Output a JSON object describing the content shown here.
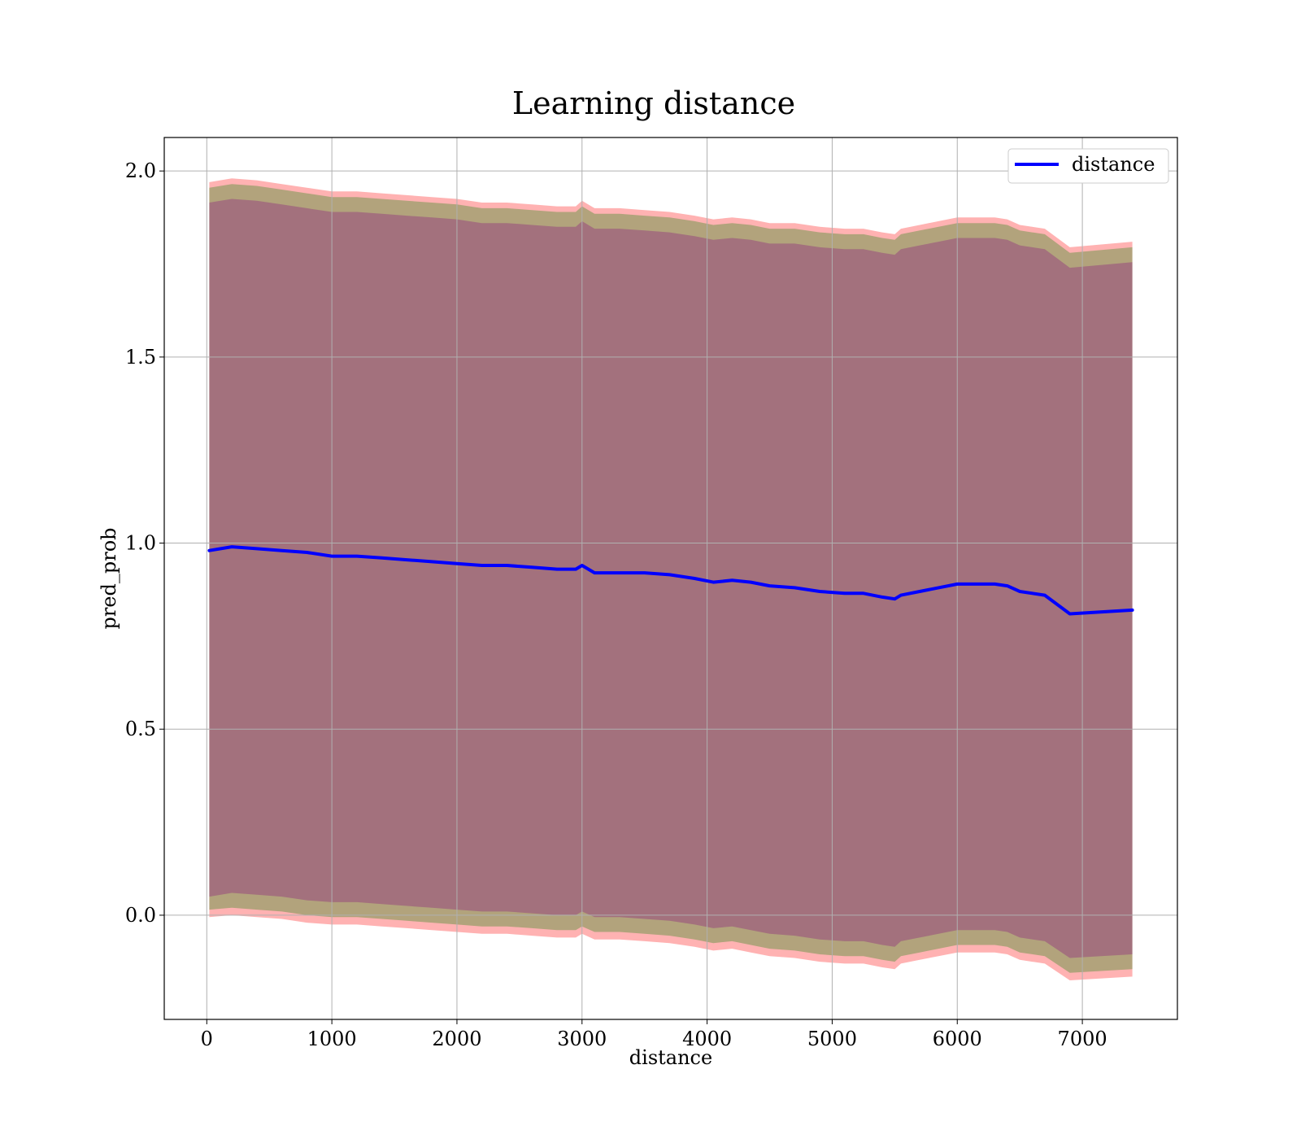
{
  "chart_data": {
    "type": "area",
    "title": "Learning distance",
    "xlabel": "distance",
    "ylabel": "pred_prob",
    "xlim": [
      -340,
      7760
    ],
    "ylim": [
      -0.28,
      2.09
    ],
    "grid": true,
    "legend_position": "top-right",
    "x_ticks": [
      0,
      1000,
      2000,
      3000,
      4000,
      5000,
      6000,
      7000
    ],
    "y_ticks": [
      0.0,
      0.5,
      1.0,
      1.5,
      2.0
    ],
    "x_tick_labels": [
      "0",
      "1000",
      "2000",
      "3000",
      "4000",
      "5000",
      "6000",
      "7000"
    ],
    "y_tick_labels": [
      "0.0",
      "0.5",
      "1.0",
      "1.5",
      "2.0"
    ],
    "x": [
      20,
      200,
      400,
      600,
      800,
      1000,
      1200,
      1400,
      1600,
      1800,
      2000,
      2200,
      2400,
      2600,
      2800,
      2950,
      3000,
      3100,
      3300,
      3500,
      3700,
      3900,
      4050,
      4200,
      4350,
      4500,
      4700,
      4900,
      5100,
      5250,
      5400,
      5500,
      5550,
      5700,
      5850,
      6000,
      6100,
      6300,
      6400,
      6500,
      6700,
      6900,
      7400
    ],
    "series": [
      {
        "name": "distance",
        "color": "#0000ff",
        "values": [
          0.98,
          0.99,
          0.985,
          0.98,
          0.975,
          0.965,
          0.965,
          0.96,
          0.955,
          0.95,
          0.945,
          0.94,
          0.94,
          0.935,
          0.93,
          0.93,
          0.94,
          0.92,
          0.92,
          0.92,
          0.915,
          0.905,
          0.895,
          0.9,
          0.895,
          0.885,
          0.88,
          0.87,
          0.865,
          0.865,
          0.855,
          0.85,
          0.86,
          0.87,
          0.88,
          0.89,
          0.89,
          0.89,
          0.885,
          0.87,
          0.86,
          0.81,
          0.82
        ]
      }
    ],
    "bands": [
      {
        "color": "#ff0000",
        "upper": [
          1.97,
          1.98,
          1.975,
          1.965,
          1.955,
          1.945,
          1.945,
          1.94,
          1.935,
          1.93,
          1.925,
          1.915,
          1.915,
          1.91,
          1.905,
          1.905,
          1.92,
          1.9,
          1.9,
          1.895,
          1.89,
          1.88,
          1.87,
          1.875,
          1.87,
          1.86,
          1.86,
          1.85,
          1.845,
          1.845,
          1.835,
          1.83,
          1.845,
          1.855,
          1.865,
          1.875,
          1.875,
          1.875,
          1.87,
          1.855,
          1.845,
          1.795,
          1.81
        ],
        "lower": [
          -0.005,
          0.0,
          -0.005,
          -0.01,
          -0.02,
          -0.025,
          -0.025,
          -0.03,
          -0.035,
          -0.04,
          -0.045,
          -0.05,
          -0.05,
          -0.055,
          -0.06,
          -0.06,
          -0.05,
          -0.065,
          -0.065,
          -0.07,
          -0.075,
          -0.085,
          -0.095,
          -0.09,
          -0.1,
          -0.11,
          -0.115,
          -0.125,
          -0.13,
          -0.13,
          -0.14,
          -0.145,
          -0.13,
          -0.12,
          -0.11,
          -0.1,
          -0.1,
          -0.1,
          -0.105,
          -0.12,
          -0.13,
          -0.175,
          -0.165
        ]
      },
      {
        "color": "#008000",
        "upper": [
          1.955,
          1.965,
          1.96,
          1.95,
          1.94,
          1.93,
          1.93,
          1.925,
          1.92,
          1.915,
          1.91,
          1.9,
          1.9,
          1.895,
          1.89,
          1.89,
          1.905,
          1.885,
          1.885,
          1.88,
          1.875,
          1.865,
          1.855,
          1.86,
          1.855,
          1.845,
          1.845,
          1.835,
          1.83,
          1.83,
          1.82,
          1.815,
          1.83,
          1.84,
          1.85,
          1.86,
          1.86,
          1.86,
          1.855,
          1.84,
          1.83,
          1.78,
          1.795
        ],
        "lower": [
          0.015,
          0.02,
          0.015,
          0.01,
          0.0,
          -0.005,
          -0.005,
          -0.01,
          -0.015,
          -0.02,
          -0.025,
          -0.03,
          -0.03,
          -0.035,
          -0.04,
          -0.04,
          -0.03,
          -0.045,
          -0.045,
          -0.05,
          -0.055,
          -0.065,
          -0.075,
          -0.07,
          -0.08,
          -0.09,
          -0.095,
          -0.105,
          -0.11,
          -0.11,
          -0.12,
          -0.125,
          -0.11,
          -0.1,
          -0.09,
          -0.08,
          -0.08,
          -0.08,
          -0.085,
          -0.1,
          -0.11,
          -0.155,
          -0.145
        ]
      },
      {
        "color": "#800080",
        "upper": [
          1.915,
          1.925,
          1.92,
          1.91,
          1.9,
          1.89,
          1.89,
          1.885,
          1.88,
          1.875,
          1.87,
          1.86,
          1.86,
          1.855,
          1.85,
          1.85,
          1.865,
          1.845,
          1.845,
          1.84,
          1.835,
          1.825,
          1.815,
          1.82,
          1.815,
          1.805,
          1.805,
          1.795,
          1.79,
          1.79,
          1.78,
          1.775,
          1.79,
          1.8,
          1.81,
          1.82,
          1.82,
          1.82,
          1.815,
          1.8,
          1.79,
          1.74,
          1.755
        ],
        "lower": [
          0.05,
          0.06,
          0.055,
          0.05,
          0.04,
          0.035,
          0.035,
          0.03,
          0.025,
          0.02,
          0.015,
          0.01,
          0.01,
          0.005,
          0.0,
          0.0,
          0.01,
          -0.005,
          -0.005,
          -0.01,
          -0.015,
          -0.025,
          -0.035,
          -0.03,
          -0.04,
          -0.05,
          -0.055,
          -0.065,
          -0.07,
          -0.07,
          -0.08,
          -0.085,
          -0.07,
          -0.06,
          -0.05,
          -0.04,
          -0.04,
          -0.04,
          -0.045,
          -0.06,
          -0.07,
          -0.115,
          -0.105
        ]
      }
    ]
  }
}
